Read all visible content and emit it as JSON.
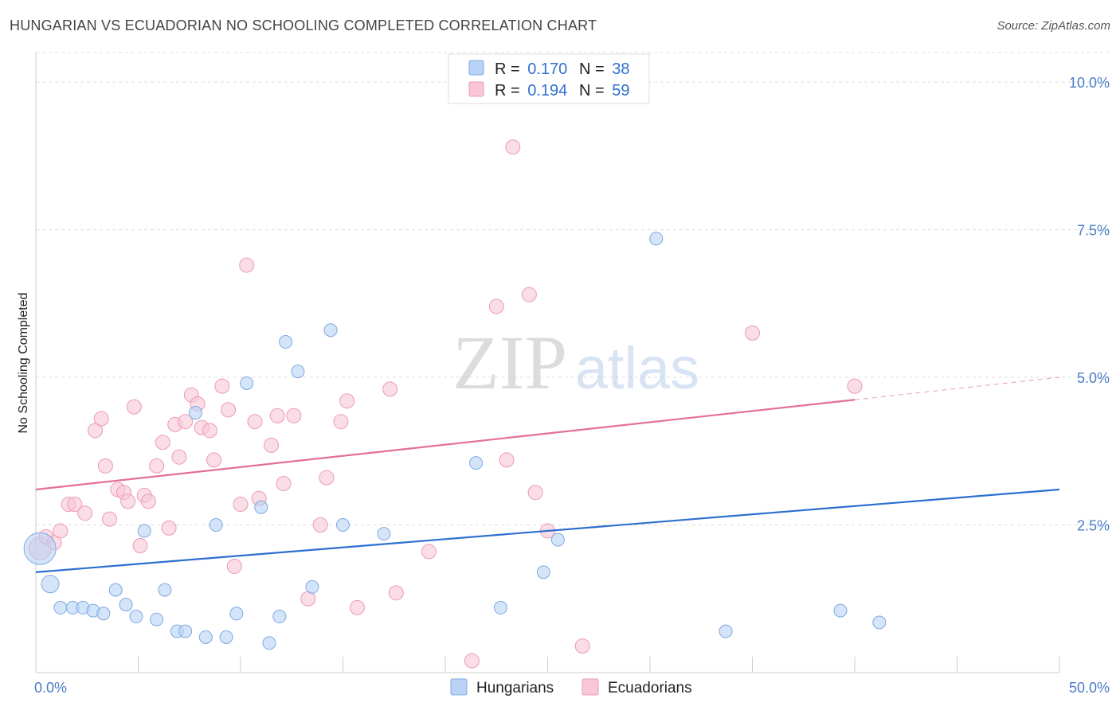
{
  "title": "HUNGARIAN VS ECUADORIAN NO SCHOOLING COMPLETED CORRELATION CHART",
  "source": "Source: ZipAtlas.com",
  "watermark": {
    "zip": "ZIP",
    "atlas": "atlas"
  },
  "colors": {
    "blue_fill": "#b8d3f5",
    "blue_stroke": "#7fa9e0",
    "blue_line": "#2d6fd0",
    "pink_fill": "#f8c6d6",
    "pink_stroke": "#eb9ab6",
    "pink_line": "#e46f98",
    "tick_text": "#4a7cc7"
  },
  "legend": {
    "rows": [
      {
        "r_label": "R = ",
        "r_value": "0.170",
        "n_label": "N = ",
        "n_value": "38"
      },
      {
        "r_label": "R = ",
        "r_value": "0.194",
        "n_label": "N = ",
        "n_value": "59"
      }
    ]
  },
  "chart_data": {
    "type": "scatter",
    "ylabel": "No Schooling Completed",
    "xlim": [
      0,
      50
    ],
    "ylim": [
      0,
      10.5
    ],
    "x_tick_labels": [
      {
        "value": 0,
        "label": "0.0%"
      },
      {
        "value": 50,
        "label": "50.0%"
      }
    ],
    "y_ticks": [
      {
        "value": 2.5,
        "label": "2.5%"
      },
      {
        "value": 5.0,
        "label": "5.0%"
      },
      {
        "value": 7.5,
        "label": "7.5%"
      },
      {
        "value": 10.0,
        "label": "10.0%"
      }
    ],
    "grid": "horizontal-dashed",
    "legend_position": "top-center",
    "series": [
      {
        "name": "Hungarians",
        "color": "blue",
        "trend": {
          "x0": 0,
          "y0": 1.7,
          "x1": 50,
          "y1": 3.1,
          "dash_from": 50
        },
        "points": [
          [
            0.2,
            2.1,
            20
          ],
          [
            0.7,
            1.5,
            11
          ],
          [
            1.2,
            1.1,
            8
          ],
          [
            1.8,
            1.1,
            8
          ],
          [
            2.3,
            1.1,
            8
          ],
          [
            2.8,
            1.05,
            8
          ],
          [
            3.3,
            1.0,
            8
          ],
          [
            3.9,
            1.4,
            8
          ],
          [
            4.4,
            1.15,
            8
          ],
          [
            4.9,
            0.95,
            8
          ],
          [
            5.3,
            2.4,
            8
          ],
          [
            5.9,
            0.9,
            8
          ],
          [
            6.3,
            1.4,
            8
          ],
          [
            6.9,
            0.7,
            8
          ],
          [
            7.3,
            0.7,
            8
          ],
          [
            7.8,
            4.4,
            8
          ],
          [
            8.3,
            0.6,
            8
          ],
          [
            8.8,
            2.5,
            8
          ],
          [
            9.3,
            0.6,
            8
          ],
          [
            9.8,
            1.0,
            8
          ],
          [
            10.3,
            4.9,
            8
          ],
          [
            11.0,
            2.8,
            8
          ],
          [
            11.4,
            0.5,
            8
          ],
          [
            11.9,
            0.95,
            8
          ],
          [
            12.2,
            5.6,
            8
          ],
          [
            12.8,
            5.1,
            8
          ],
          [
            13.5,
            1.45,
            8
          ],
          [
            14.4,
            5.8,
            8
          ],
          [
            15.0,
            2.5,
            8
          ],
          [
            17.0,
            2.35,
            8
          ],
          [
            21.5,
            3.55,
            8
          ],
          [
            22.7,
            1.1,
            8
          ],
          [
            24.8,
            1.7,
            8
          ],
          [
            25.5,
            2.25,
            8
          ],
          [
            30.3,
            7.35,
            8
          ],
          [
            33.7,
            0.7,
            8
          ],
          [
            39.3,
            1.05,
            8
          ],
          [
            41.2,
            0.85,
            8
          ]
        ]
      },
      {
        "name": "Ecuadorians",
        "color": "pink",
        "trend": {
          "x0": 0,
          "y0": 3.1,
          "x1": 50,
          "y1": 5.0,
          "dash_from": 40
        },
        "points": [
          [
            0.2,
            2.1,
            14
          ],
          [
            0.5,
            2.3,
            9
          ],
          [
            0.9,
            2.2,
            9
          ],
          [
            1.2,
            2.4,
            9
          ],
          [
            1.6,
            2.85,
            9
          ],
          [
            1.9,
            2.85,
            9
          ],
          [
            2.4,
            2.7,
            9
          ],
          [
            2.9,
            4.1,
            9
          ],
          [
            3.2,
            4.3,
            9
          ],
          [
            3.4,
            3.5,
            9
          ],
          [
            3.6,
            2.6,
            9
          ],
          [
            4.0,
            3.1,
            9
          ],
          [
            4.3,
            3.05,
            9
          ],
          [
            4.5,
            2.9,
            9
          ],
          [
            4.8,
            4.5,
            9
          ],
          [
            5.1,
            2.15,
            9
          ],
          [
            5.3,
            3.0,
            9
          ],
          [
            5.5,
            2.9,
            9
          ],
          [
            5.9,
            3.5,
            9
          ],
          [
            6.2,
            3.9,
            9
          ],
          [
            6.5,
            2.45,
            9
          ],
          [
            6.8,
            4.2,
            9
          ],
          [
            7.0,
            3.65,
            9
          ],
          [
            7.3,
            4.25,
            9
          ],
          [
            7.6,
            4.7,
            9
          ],
          [
            7.9,
            4.55,
            9
          ],
          [
            8.1,
            4.15,
            9
          ],
          [
            8.5,
            4.1,
            9
          ],
          [
            8.7,
            3.6,
            9
          ],
          [
            9.1,
            4.85,
            9
          ],
          [
            9.4,
            4.45,
            9
          ],
          [
            9.7,
            1.8,
            9
          ],
          [
            10.0,
            2.85,
            9
          ],
          [
            10.3,
            6.9,
            9
          ],
          [
            10.7,
            4.25,
            9
          ],
          [
            10.9,
            2.95,
            9
          ],
          [
            11.5,
            3.85,
            9
          ],
          [
            11.8,
            4.35,
            9
          ],
          [
            12.1,
            3.2,
            9
          ],
          [
            12.6,
            4.35,
            9
          ],
          [
            13.3,
            1.25,
            9
          ],
          [
            13.9,
            2.5,
            9
          ],
          [
            14.2,
            3.3,
            9
          ],
          [
            14.9,
            4.25,
            9
          ],
          [
            15.2,
            4.6,
            9
          ],
          [
            15.7,
            1.1,
            9
          ],
          [
            17.3,
            4.8,
            9
          ],
          [
            17.6,
            1.35,
            9
          ],
          [
            19.2,
            2.05,
            9
          ],
          [
            21.3,
            0.2,
            9
          ],
          [
            22.5,
            6.2,
            9
          ],
          [
            23.0,
            3.6,
            9
          ],
          [
            23.3,
            8.9,
            9
          ],
          [
            24.1,
            6.4,
            9
          ],
          [
            24.4,
            3.05,
            9
          ],
          [
            25.0,
            2.4,
            9
          ],
          [
            26.7,
            0.45,
            9
          ],
          [
            35.0,
            5.75,
            9
          ],
          [
            40.0,
            4.85,
            9
          ]
        ]
      }
    ]
  }
}
